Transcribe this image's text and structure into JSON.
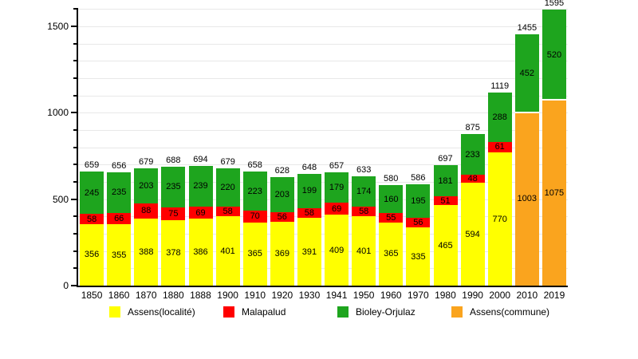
{
  "chart_data": {
    "type": "bar",
    "stacked": true,
    "title": "",
    "xlabel": "",
    "ylabel": "",
    "ylim": [
      0,
      1600
    ],
    "yticks_major": [
      0,
      500,
      1000,
      1500
    ],
    "grid_interval": 100,
    "grid_on": true,
    "legend_position": "bottom",
    "categories": [
      "1850",
      "1860",
      "1870",
      "1880",
      "1888",
      "1900",
      "1910",
      "1920",
      "1930",
      "1941",
      "1950",
      "1960",
      "1970",
      "1980",
      "1990",
      "2000",
      "2010",
      "2019"
    ],
    "series": [
      {
        "name": "Assens(localité)",
        "color": "#FFFF00",
        "values": [
          356,
          355,
          388,
          378,
          386,
          401,
          365,
          369,
          391,
          409,
          401,
          365,
          335,
          465,
          594,
          770,
          null,
          null
        ]
      },
      {
        "name": "Malapalud",
        "color": "#FF0000",
        "values": [
          58,
          66,
          88,
          75,
          69,
          58,
          70,
          56,
          58,
          69,
          58,
          55,
          56,
          51,
          48,
          61,
          null,
          null
        ]
      },
      {
        "name": "Bioley-Orjulaz",
        "color": "#1EA51E",
        "values": [
          245,
          235,
          203,
          235,
          239,
          220,
          223,
          203,
          199,
          179,
          174,
          160,
          195,
          181,
          233,
          288,
          452,
          520
        ]
      },
      {
        "name": "Assens(commune)",
        "color": "#FAA41E",
        "values": [
          null,
          null,
          null,
          null,
          null,
          null,
          null,
          null,
          null,
          null,
          null,
          null,
          null,
          null,
          null,
          null,
          1003,
          1075
        ]
      }
    ],
    "stack_order": [
      "Assens(localité)",
      "Malapalud",
      "Assens(commune)",
      "Bioley-Orjulaz"
    ],
    "totals": [
      659,
      656,
      679,
      688,
      694,
      679,
      658,
      628,
      648,
      657,
      633,
      580,
      586,
      697,
      875,
      1119,
      1455,
      1595
    ]
  },
  "colors": {
    "axis": "#000000",
    "gridline": "#e8e8e8",
    "background": "#ffffff",
    "label_text": "#000000"
  }
}
